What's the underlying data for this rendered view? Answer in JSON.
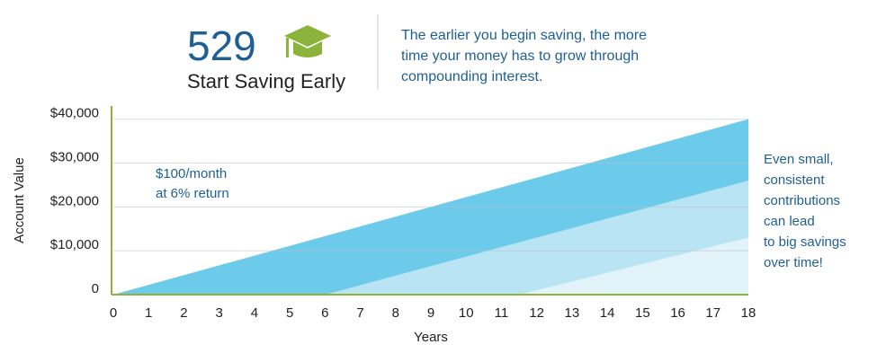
{
  "chart_data": {
    "type": "area",
    "title": "529",
    "subtitle": "Start Saving Early",
    "description": [
      "The earlier you begin saving, the more",
      "time your money has to grow through",
      "compounding interest."
    ],
    "annotation": [
      "$100/month",
      "at 6% return"
    ],
    "side_note": [
      "Even small,",
      "consistent",
      "contributions",
      "can lead",
      "to big savings",
      "over time!"
    ],
    "x_label": "Years",
    "y_label": "Account Value",
    "xlim": [
      0,
      18
    ],
    "xticks": [
      0,
      1,
      2,
      3,
      4,
      5,
      6,
      7,
      8,
      9,
      10,
      11,
      12,
      13,
      14,
      15,
      16,
      17,
      18
    ],
    "ylim": [
      0,
      43000
    ],
    "yticks": [
      0,
      {
        "value": 10000,
        "label": "$10,000"
      },
      {
        "value": 20000,
        "label": "$20,000"
      },
      {
        "value": 30000,
        "label": "$30,000"
      },
      {
        "value": 40000,
        "label": "$40,000"
      }
    ],
    "grid": true,
    "series": [
      {
        "color": "#6ccbea",
        "x": [
          0,
          18
        ],
        "values": [
          0,
          40000
        ]
      },
      {
        "color": "#b9e4f3",
        "x": [
          6,
          18
        ],
        "values": [
          0,
          26000
        ]
      },
      {
        "color": "#e2f3fa",
        "x": [
          11.5,
          18
        ],
        "values": [
          0,
          13000
        ]
      }
    ]
  }
}
